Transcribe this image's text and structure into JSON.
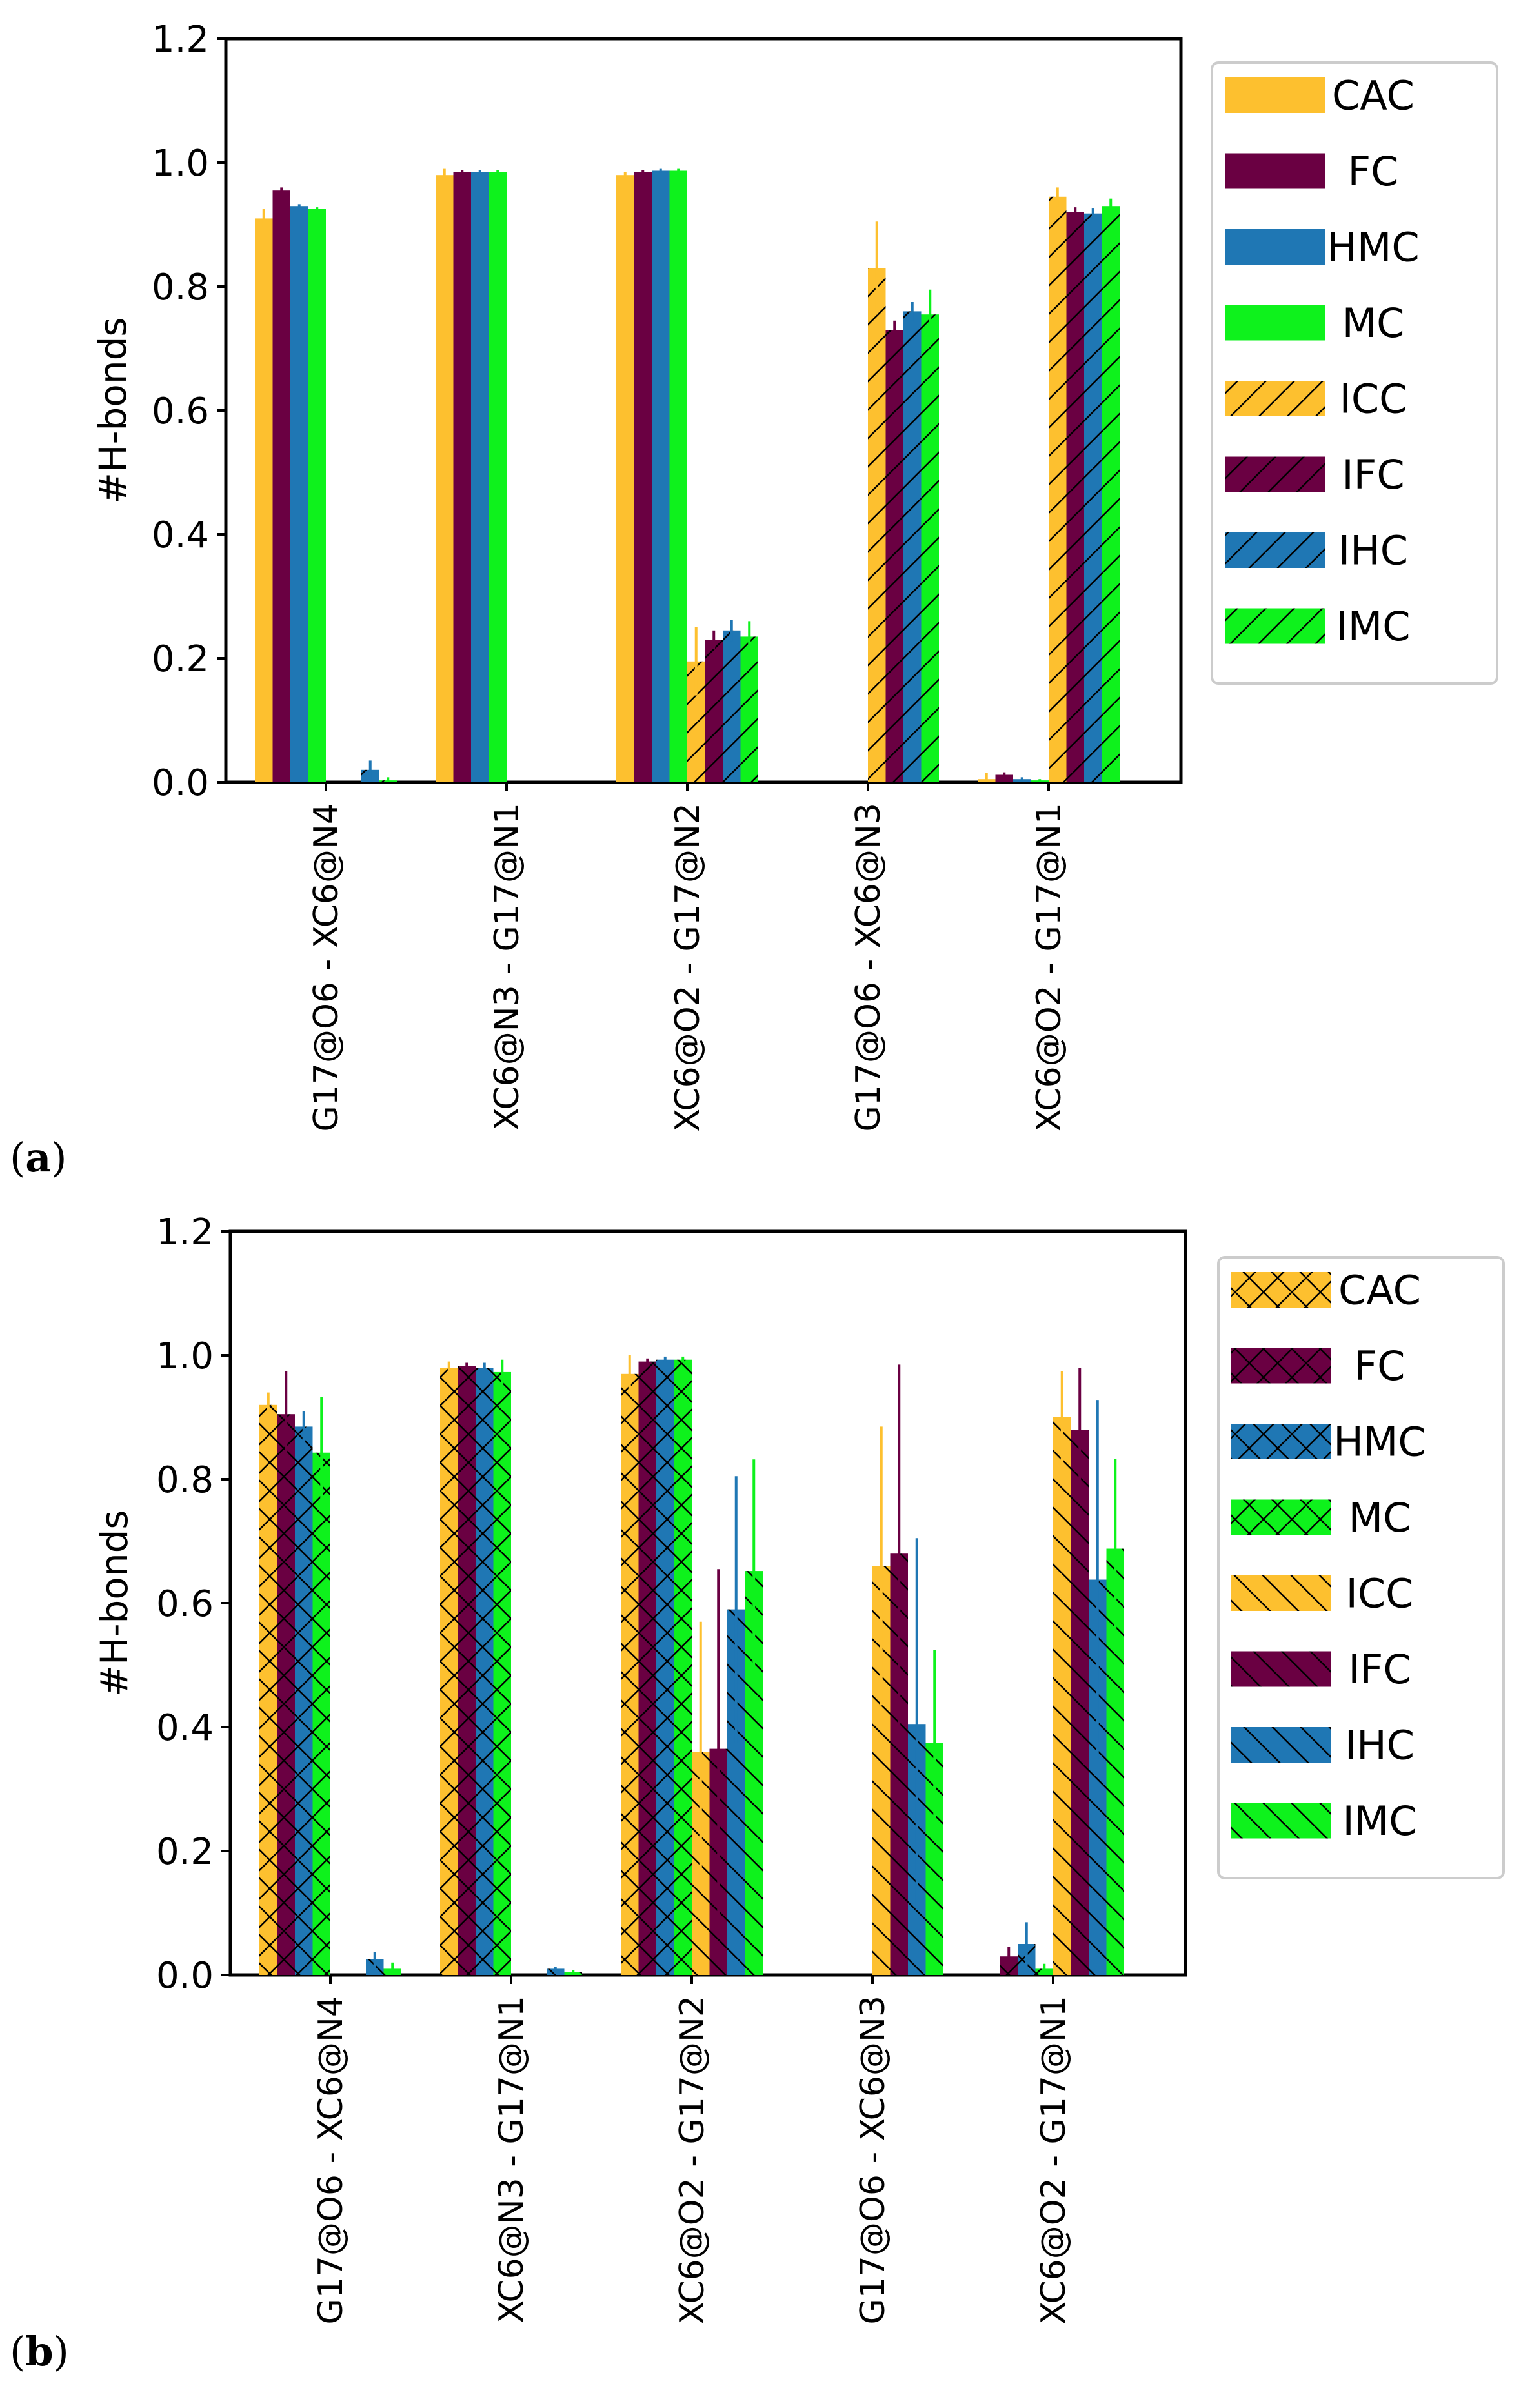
{
  "colors": {
    "CAC": "#fdc02f",
    "FC": "#6a0042",
    "HMC": "#1f77b4",
    "MC": "#0ef21c"
  },
  "chart_data": [
    {
      "id": "a",
      "panel_label_open": "(",
      "panel_label_letter": "a",
      "panel_label_close": ")",
      "type": "bar",
      "ylabel": "#H-bonds",
      "ylim": [
        0,
        1.2
      ],
      "yticks": [
        "0.0",
        "0.2",
        "0.4",
        "0.6",
        "0.8",
        "1.0",
        "1.2"
      ],
      "legend_position": "top-right outside",
      "categories": [
        "G17@O6 - XC6@N4",
        "XC6@N3 - G17@N1",
        "XC6@O2 - G17@N2",
        "G17@O6 - XC6@N3",
        "XC6@O2 - G17@N1"
      ],
      "series": [
        {
          "name": "CAC",
          "color_key": "CAC",
          "hatch": "none",
          "values": [
            0.91,
            0.98,
            0.98,
            0.0,
            0.005
          ],
          "errors": [
            0.015,
            0.01,
            0.005,
            0.0,
            0.01
          ]
        },
        {
          "name": "FC",
          "color_key": "FC",
          "hatch": "none",
          "values": [
            0.955,
            0.985,
            0.985,
            0.0,
            0.012
          ],
          "errors": [
            0.005,
            0.003,
            0.003,
            0.0,
            0.004
          ]
        },
        {
          "name": "HMC",
          "color_key": "HMC",
          "hatch": "none",
          "values": [
            0.93,
            0.985,
            0.987,
            0.0,
            0.005
          ],
          "errors": [
            0.003,
            0.003,
            0.003,
            0.0,
            0.003
          ]
        },
        {
          "name": "MC",
          "color_key": "MC",
          "hatch": "none",
          "values": [
            0.925,
            0.985,
            0.987,
            0.0,
            0.003
          ],
          "errors": [
            0.003,
            0.003,
            0.003,
            0.0,
            0.002
          ]
        },
        {
          "name": "ICC",
          "color_key": "CAC",
          "hatch": "fwd",
          "values": [
            0.0,
            0.0,
            0.195,
            0.83,
            0.945
          ],
          "errors": [
            0.0,
            0.0,
            0.055,
            0.075,
            0.015
          ]
        },
        {
          "name": "IFC",
          "color_key": "FC",
          "hatch": "fwd",
          "values": [
            0.0,
            0.0,
            0.23,
            0.73,
            0.92
          ],
          "errors": [
            0.0,
            0.0,
            0.015,
            0.015,
            0.008
          ]
        },
        {
          "name": "IHC",
          "color_key": "HMC",
          "hatch": "fwd",
          "values": [
            0.02,
            0.0,
            0.245,
            0.76,
            0.918
          ],
          "errors": [
            0.015,
            0.0,
            0.017,
            0.015,
            0.008
          ]
        },
        {
          "name": "IMC",
          "color_key": "MC",
          "hatch": "fwd",
          "values": [
            0.003,
            0.0,
            0.235,
            0.755,
            0.93
          ],
          "errors": [
            0.005,
            0.0,
            0.025,
            0.04,
            0.012
          ]
        }
      ]
    },
    {
      "id": "b",
      "panel_label_open": "(",
      "panel_label_letter": "b",
      "panel_label_close": ")",
      "type": "bar",
      "ylabel": "#H-bonds",
      "ylim": [
        0,
        1.2
      ],
      "yticks": [
        "0.0",
        "0.2",
        "0.4",
        "0.6",
        "0.8",
        "1.0",
        "1.2"
      ],
      "legend_position": "top-right outside",
      "categories": [
        "G17@O6 - XC6@N4",
        "XC6@N3 - G17@N1",
        "XC6@O2 - G17@N2",
        "G17@O6 - XC6@N3",
        "XC6@O2 - G17@N1"
      ],
      "series": [
        {
          "name": "CAC",
          "color_key": "CAC",
          "hatch": "cross",
          "values": [
            0.92,
            0.98,
            0.97,
            0.0,
            0.0
          ],
          "errors": [
            0.02,
            0.01,
            0.03,
            0.0,
            0.0
          ]
        },
        {
          "name": "FC",
          "color_key": "FC",
          "hatch": "cross",
          "values": [
            0.905,
            0.983,
            0.99,
            0.0,
            0.03
          ],
          "errors": [
            0.07,
            0.005,
            0.005,
            0.0,
            0.015
          ]
        },
        {
          "name": "HMC",
          "color_key": "HMC",
          "hatch": "cross",
          "values": [
            0.885,
            0.98,
            0.993,
            0.0,
            0.05
          ],
          "errors": [
            0.025,
            0.008,
            0.005,
            0.0,
            0.035
          ]
        },
        {
          "name": "MC",
          "color_key": "MC",
          "hatch": "cross",
          "values": [
            0.843,
            0.973,
            0.993,
            0.0,
            0.01
          ],
          "errors": [
            0.09,
            0.02,
            0.005,
            0.0,
            0.008
          ]
        },
        {
          "name": "ICC",
          "color_key": "CAC",
          "hatch": "back",
          "values": [
            0.0,
            0.0,
            0.36,
            0.66,
            0.9
          ],
          "errors": [
            0.0,
            0.0,
            0.21,
            0.225,
            0.075
          ]
        },
        {
          "name": "IFC",
          "color_key": "FC",
          "hatch": "back",
          "values": [
            0.0,
            0.0,
            0.365,
            0.68,
            0.88
          ],
          "errors": [
            0.0,
            0.0,
            0.29,
            0.305,
            0.1
          ]
        },
        {
          "name": "IHC",
          "color_key": "HMC",
          "hatch": "back",
          "values": [
            0.025,
            0.01,
            0.59,
            0.405,
            0.638
          ],
          "errors": [
            0.012,
            0.003,
            0.215,
            0.3,
            0.29
          ]
        },
        {
          "name": "IMC",
          "color_key": "MC",
          "hatch": "back",
          "values": [
            0.01,
            0.005,
            0.652,
            0.375,
            0.688
          ],
          "errors": [
            0.01,
            0.003,
            0.18,
            0.15,
            0.145
          ]
        }
      ]
    }
  ]
}
